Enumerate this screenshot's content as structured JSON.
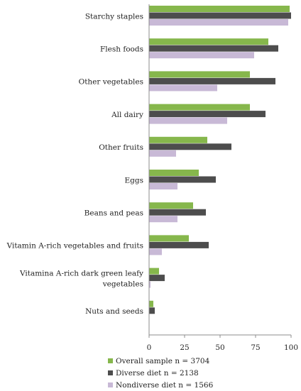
{
  "chart_data": {
    "type": "bar",
    "orientation": "horizontal",
    "categories": [
      "Starchy staples",
      "Flesh foods",
      "Other vegetables",
      "All dairy",
      "Other fruits",
      "Eggs",
      "Beans and peas",
      "Vitamin A-rich vegetables and fruits",
      [
        "Vitamina A-rich dark green leafy",
        "vegetables"
      ],
      "Nuts and seeds"
    ],
    "series": [
      {
        "name": "Overall sample n = 3704",
        "color": "#86b74c",
        "values": [
          99,
          84,
          71,
          71,
          41,
          35,
          31,
          28,
          7,
          3
        ]
      },
      {
        "name": "Diverse diet n = 2138",
        "color": "#4d4d4d",
        "values": [
          100,
          91,
          89,
          82,
          58,
          47,
          40,
          42,
          11,
          4
        ]
      },
      {
        "name": "Nondiverse diet n = 1566",
        "color": "#c8b9d6",
        "values": [
          98,
          74,
          48,
          55,
          19,
          20,
          20,
          9,
          1,
          0
        ]
      }
    ],
    "xlim": [
      0,
      100
    ],
    "xticks": [
      "0",
      "25",
      "50",
      "75",
      "100"
    ],
    "legend_position": "bottom",
    "grid": false
  }
}
